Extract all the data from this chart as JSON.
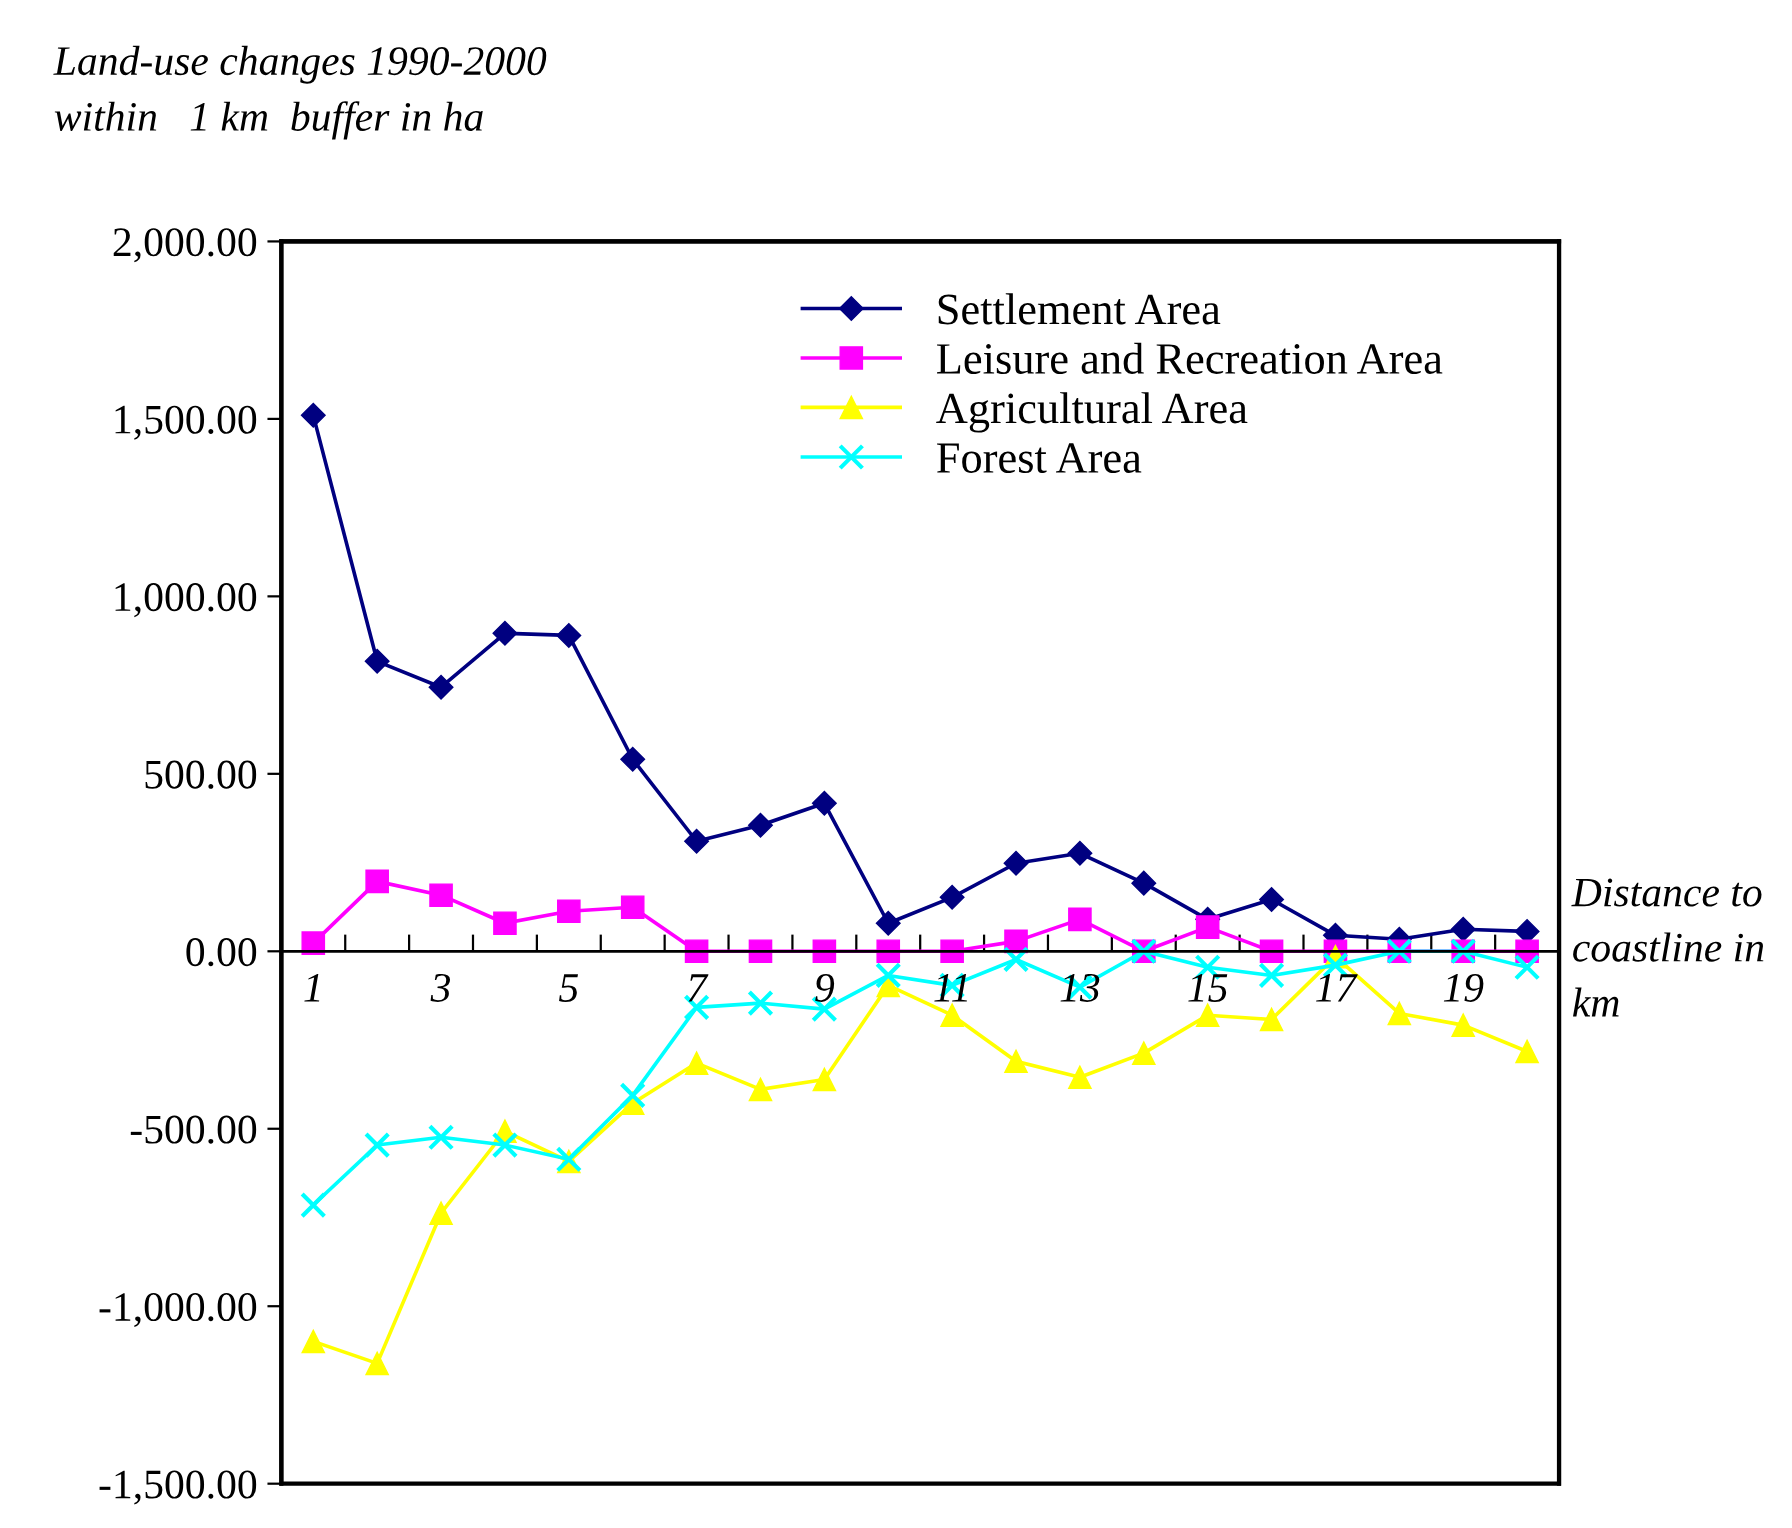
{
  "chart_data": {
    "type": "line",
    "title": "Land-use changes 1990-2000\nwithin   1 km  buffer in ha",
    "xlabel": "Distance to\ncoastline in\nkm",
    "categories": [
      "1",
      null,
      "3",
      null,
      "5",
      null,
      "7",
      null,
      "9",
      null,
      "11",
      null,
      "13",
      null,
      "15",
      null,
      "17",
      null,
      "19",
      null
    ],
    "series": [
      {
        "name": "Settlement Area",
        "color": "#000080",
        "marker": "diamond",
        "values": [
          1510,
          817,
          744,
          896,
          890,
          541,
          310,
          355,
          417,
          79,
          152,
          248,
          276,
          192,
          90,
          146,
          45,
          34,
          62,
          56
        ]
      },
      {
        "name": "Leisure and Recreation Area",
        "color": "#ff00ff",
        "marker": "square",
        "values": [
          23,
          197,
          158,
          79,
          113,
          124,
          0,
          0,
          0,
          0,
          0,
          28,
          90,
          0,
          68,
          0,
          0,
          0,
          0,
          0
        ]
      },
      {
        "name": "Agricultural Area",
        "color": "#ffff00",
        "marker": "triangle",
        "values": [
          -1099,
          -1161,
          -738,
          -507,
          -592,
          -428,
          -315,
          -389,
          -361,
          -96,
          -180,
          -310,
          -355,
          -287,
          -180,
          -192,
          -15,
          -175,
          -208,
          -282
        ]
      },
      {
        "name": "Forest Area",
        "color": "#00ffff",
        "marker": "cross",
        "values": [
          -715,
          -546,
          -524,
          -546,
          -586,
          -406,
          -158,
          -146,
          -163,
          -68,
          -96,
          -23,
          -101,
          0,
          -45,
          -68,
          -39,
          0,
          0,
          -45
        ]
      }
    ],
    "ylim": [
      -1500,
      2000
    ],
    "yticks": [
      {
        "value": -1500,
        "label": "-1,500.00"
      },
      {
        "value": -1000,
        "label": "-1,000.00"
      },
      {
        "value": -500,
        "label": "-500.00"
      },
      {
        "value": 0,
        "label": "0.00"
      },
      {
        "value": 500,
        "label": "500.00"
      },
      {
        "value": 1000,
        "label": "1,000.00"
      },
      {
        "value": 1500,
        "label": "1,500.00"
      },
      {
        "value": 2000,
        "label": "2,000.00"
      }
    ],
    "grid": false,
    "legend": "top right"
  }
}
